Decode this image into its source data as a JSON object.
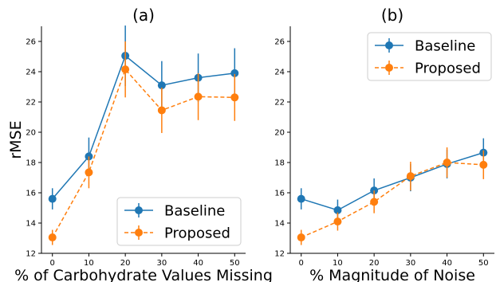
{
  "chart_data": [
    {
      "type": "line",
      "title": "(a)",
      "xlabel": "% of Carbohydrate Values Missing",
      "ylabel": "rMSE",
      "x": [
        0,
        10,
        20,
        30,
        40,
        50
      ],
      "xticks": [
        "0",
        "10",
        "20",
        "30",
        "40",
        "50"
      ],
      "yticks": [
        "12",
        "14",
        "16",
        "18",
        "20",
        "22",
        "24",
        "26"
      ],
      "xlim": [
        -3,
        53
      ],
      "ylim": [
        12,
        27
      ],
      "legend_position": "lower-right",
      "series": [
        {
          "name": "Baseline",
          "color": "#1f77b4",
          "linestyle": "solid",
          "values": [
            15.6,
            18.4,
            25.05,
            23.1,
            23.6,
            23.9
          ],
          "err": [
            0.7,
            1.25,
            2.0,
            1.6,
            1.6,
            1.65
          ]
        },
        {
          "name": "Proposed",
          "color": "#ff7f0e",
          "linestyle": "dashed",
          "values": [
            13.05,
            17.35,
            24.15,
            21.45,
            22.35,
            22.3
          ],
          "err": [
            0.5,
            1.05,
            1.85,
            1.5,
            1.55,
            1.55
          ]
        }
      ]
    },
    {
      "type": "line",
      "title": "(b)",
      "xlabel": "% Magnitude of Noise",
      "ylabel": "",
      "x": [
        0,
        10,
        20,
        30,
        40,
        50
      ],
      "xticks": [
        "0",
        "10",
        "20",
        "30",
        "40",
        "50"
      ],
      "yticks": [
        "12",
        "14",
        "16",
        "18",
        "20",
        "22",
        "24",
        "26"
      ],
      "xlim": [
        -3,
        53
      ],
      "ylim": [
        12,
        27
      ],
      "legend_position": "upper-left",
      "series": [
        {
          "name": "Baseline",
          "color": "#1f77b4",
          "linestyle": "solid",
          "values": [
            15.6,
            14.85,
            16.15,
            17.0,
            17.9,
            18.65
          ],
          "err": [
            0.7,
            0.7,
            0.8,
            0.9,
            0.95,
            0.95
          ]
        },
        {
          "name": "Proposed",
          "color": "#ff7f0e",
          "linestyle": "dashed",
          "values": [
            13.05,
            14.1,
            15.4,
            17.1,
            18.0,
            17.85
          ],
          "err": [
            0.5,
            0.6,
            0.75,
            0.95,
            1.0,
            0.95
          ]
        }
      ]
    }
  ]
}
